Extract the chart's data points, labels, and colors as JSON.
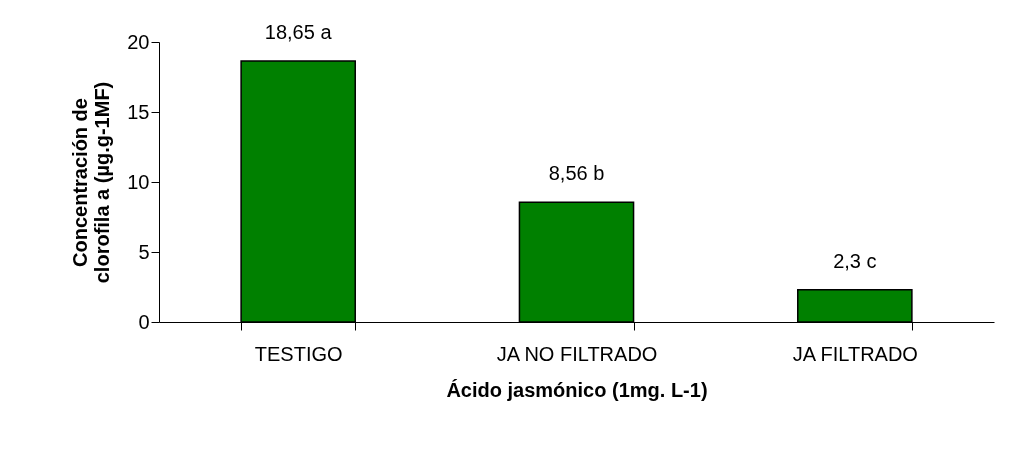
{
  "chart_data": {
    "type": "bar",
    "categories": [
      "TESTIGO",
      "JA NO FILTRADO",
      "JA FILTRADO"
    ],
    "values": [
      18.65,
      8.56,
      2.3
    ],
    "value_labels": [
      "18,65 a",
      "8,56 b",
      "2,3 c"
    ],
    "color": "#008000",
    "xlabel": "Ácido jasmónico (1mg. L-1)",
    "ylabel": "Concentración de\nclorofila a  (µg.g-1MF)",
    "ylim": [
      0,
      20
    ],
    "yticks": [
      0,
      5,
      10,
      15,
      20
    ],
    "grid": false
  }
}
